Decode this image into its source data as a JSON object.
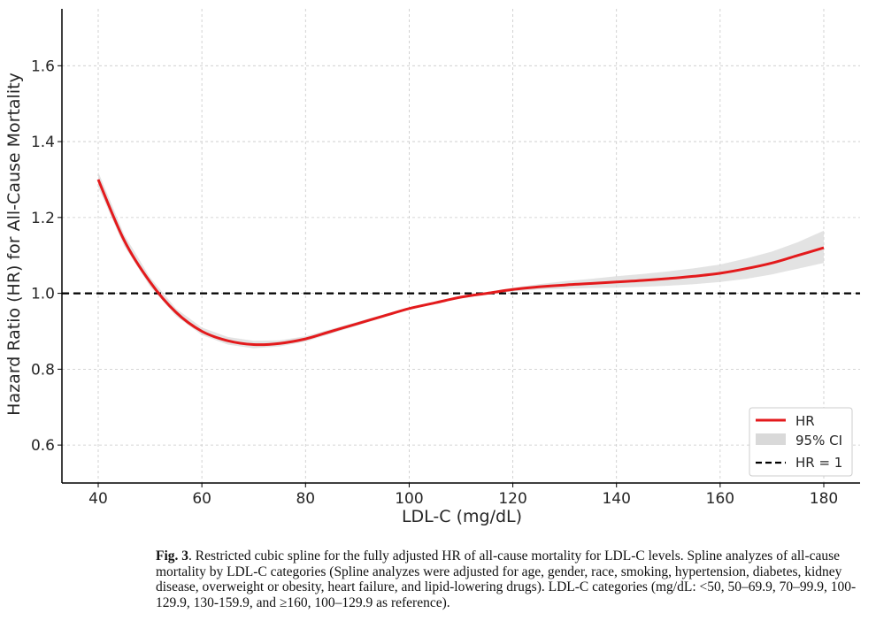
{
  "chart_data": {
    "type": "line",
    "title": "",
    "xlabel": "LDL-C (mg/dL)",
    "ylabel": "Hazard Ratio (HR) for All-Cause Mortality",
    "xlim": [
      33,
      187
    ],
    "ylim": [
      0.5,
      1.75
    ],
    "x_ticks": [
      40,
      60,
      80,
      100,
      120,
      140,
      160,
      180
    ],
    "y_ticks": [
      0.6,
      0.8,
      1.0,
      1.2,
      1.4,
      1.6
    ],
    "x_tick_labels": [
      "40",
      "60",
      "80",
      "100",
      "120",
      "140",
      "160",
      "180"
    ],
    "y_tick_labels": [
      "0.6",
      "0.8",
      "1.0",
      "1.2",
      "1.4",
      "1.6"
    ],
    "grid": true,
    "legend_position": "bottom-right",
    "series": [
      {
        "name": "HR",
        "color": "#e31a1c",
        "x": [
          40,
          45,
          50,
          55,
          60,
          65,
          70,
          75,
          80,
          85,
          90,
          95,
          100,
          105,
          110,
          115,
          120,
          125,
          130,
          135,
          140,
          145,
          150,
          155,
          160,
          165,
          170,
          175,
          180
        ],
        "y": [
          1.3,
          1.14,
          1.03,
          0.95,
          0.9,
          0.875,
          0.865,
          0.868,
          0.88,
          0.9,
          0.92,
          0.94,
          0.96,
          0.975,
          0.99,
          1.0,
          1.01,
          1.017,
          1.022,
          1.026,
          1.03,
          1.034,
          1.039,
          1.045,
          1.053,
          1.065,
          1.08,
          1.1,
          1.12
        ]
      },
      {
        "name": "95% CI",
        "color": "#d9d9d9",
        "x": [
          40,
          45,
          50,
          55,
          60,
          65,
          70,
          75,
          80,
          85,
          90,
          95,
          100,
          105,
          110,
          115,
          120,
          125,
          130,
          135,
          140,
          145,
          150,
          155,
          160,
          165,
          170,
          175,
          180
        ],
        "lower": [
          1.28,
          1.125,
          1.018,
          0.94,
          0.89,
          0.865,
          0.855,
          0.86,
          0.873,
          0.894,
          0.915,
          0.936,
          0.957,
          0.972,
          0.987,
          0.997,
          1.005,
          1.01,
          1.012,
          1.014,
          1.015,
          1.017,
          1.02,
          1.024,
          1.03,
          1.038,
          1.05,
          1.065,
          1.08
        ],
        "upper": [
          1.32,
          1.155,
          1.042,
          0.96,
          0.91,
          0.885,
          0.875,
          0.876,
          0.887,
          0.906,
          0.925,
          0.944,
          0.963,
          0.978,
          0.993,
          1.003,
          1.015,
          1.024,
          1.032,
          1.038,
          1.045,
          1.051,
          1.058,
          1.066,
          1.076,
          1.092,
          1.11,
          1.135,
          1.165
        ]
      },
      {
        "name": "HR = 1",
        "color": "#000000",
        "dashed": true,
        "x": [
          33,
          187
        ],
        "y": [
          1.0,
          1.0
        ]
      }
    ]
  },
  "caption": {
    "label": "Fig. 3",
    "text": ". Restricted cubic spline for the fully adjusted HR of all-cause mortality for LDL-C levels. Spline analyzes of all-cause mortality by LDL-C categories (Spline analyzes were adjusted for age, gender, race, smoking, hypertension, diabetes, kidney disease, overweight or obesity, heart failure, and lipid-lowering drugs). LDL-C categories (mg/dL: <50, 50–69.9, 70–99.9, 100-129.9, 130-159.9, and ≥160, 100–129.9 as reference)."
  }
}
